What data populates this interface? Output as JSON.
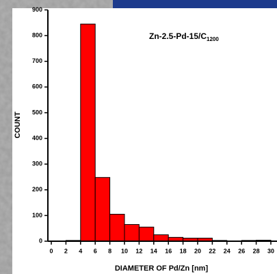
{
  "chart_data": {
    "type": "histogram",
    "title": "Zn-2.5-Pd-15/C",
    "title_subscript": "1200",
    "x_label": "DIAMETER OF Pd/Zn [nm]",
    "y_label": "COUNT",
    "bins": [
      0,
      2,
      4,
      6,
      8,
      10,
      12,
      14,
      16,
      18,
      20,
      22,
      24,
      26,
      28,
      30
    ],
    "values": [
      0,
      3,
      845,
      248,
      105,
      65,
      55,
      25,
      15,
      12,
      12,
      3,
      1,
      3,
      4
    ],
    "color": "#ff0000",
    "xlim": [
      0,
      30
    ],
    "xticks": [
      0,
      2,
      4,
      6,
      8,
      10,
      12,
      14,
      16,
      18,
      20,
      22,
      24,
      26,
      28,
      30
    ],
    "ylim": [
      0,
      900
    ],
    "yticks": [
      0,
      100,
      200,
      300,
      400,
      500,
      600,
      700,
      800,
      900
    ]
  }
}
